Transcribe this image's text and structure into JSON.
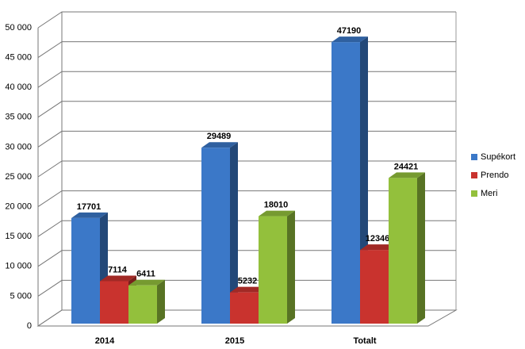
{
  "chart_data": {
    "type": "bar3d",
    "categories": [
      "2014",
      "2015",
      "Totalt"
    ],
    "series": [
      {
        "name": "Supékort",
        "color": "#3b78c8",
        "values": [
          17701,
          29489,
          47190
        ]
      },
      {
        "name": "Prendo",
        "color": "#c9332e",
        "values": [
          7114,
          5232,
          12346
        ]
      },
      {
        "name": "Meri",
        "color": "#93c03c",
        "values": [
          6411,
          18010,
          24421
        ]
      }
    ],
    "ylim": [
      0,
      50000
    ],
    "yticks": [
      0,
      {
        "value": 5000,
        "label": "5 000"
      },
      {
        "value": 10000,
        "label": "10 000"
      },
      {
        "value": 15000,
        "label": "15 000"
      },
      {
        "value": 20000,
        "label": "20 000"
      },
      {
        "value": 25000,
        "label": "25 000"
      },
      {
        "value": 30000,
        "label": "30 000"
      },
      {
        "value": 35000,
        "label": "35 000"
      },
      {
        "value": 40000,
        "label": "40 000"
      },
      {
        "value": 45000,
        "label": "45 000"
      },
      {
        "value": 50000,
        "label": "50 000"
      }
    ],
    "grid": true,
    "legend": "right"
  }
}
